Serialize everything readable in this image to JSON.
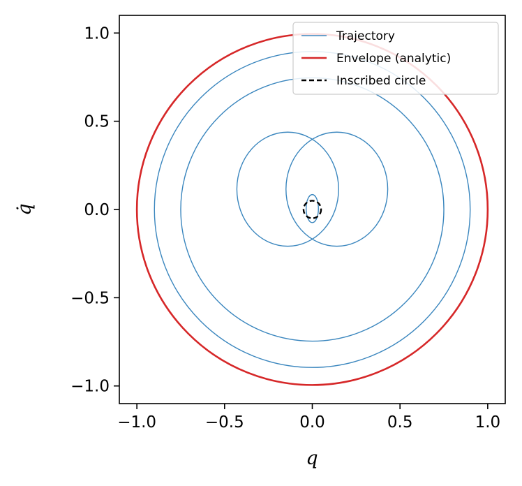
{
  "chart_data": {
    "type": "line",
    "xlabel": "q",
    "ylabel": "q̇",
    "xlim": [
      -1.1,
      1.1
    ],
    "ylim": [
      -1.1,
      1.1
    ],
    "xticks": [
      -1.0,
      -0.5,
      0.0,
      0.5,
      1.0
    ],
    "yticks": [
      -1.0,
      -0.5,
      0.0,
      0.5,
      1.0
    ],
    "xtick_labels": [
      "−1.0",
      "−0.5",
      "0.0",
      "0.5",
      "1.0"
    ],
    "ytick_labels": [
      "−1.0",
      "−0.5",
      "0.0",
      "0.5",
      "1.0"
    ],
    "grid": false,
    "legend_position": "top-right",
    "series": [
      {
        "name": "Trajectory",
        "color": "#3a86be",
        "style": "solid",
        "description_values": {
          "circle_radii": [
            1.0,
            0.9,
            0.75
          ],
          "lobe_circle_radius": 0.29,
          "lobe_centers_x": [
            -0.14,
            0.14
          ],
          "inner_circle_radius": 0.08,
          "lobe_crossings_y": [
            0.44,
            -0.21
          ]
        }
      },
      {
        "name": "Envelope (analytic)",
        "color": "#d62728",
        "style": "solid",
        "radius": 1.0
      },
      {
        "name": "Inscribed circle",
        "color": "#000000",
        "style": "dashed",
        "radius": 0.05
      }
    ]
  }
}
